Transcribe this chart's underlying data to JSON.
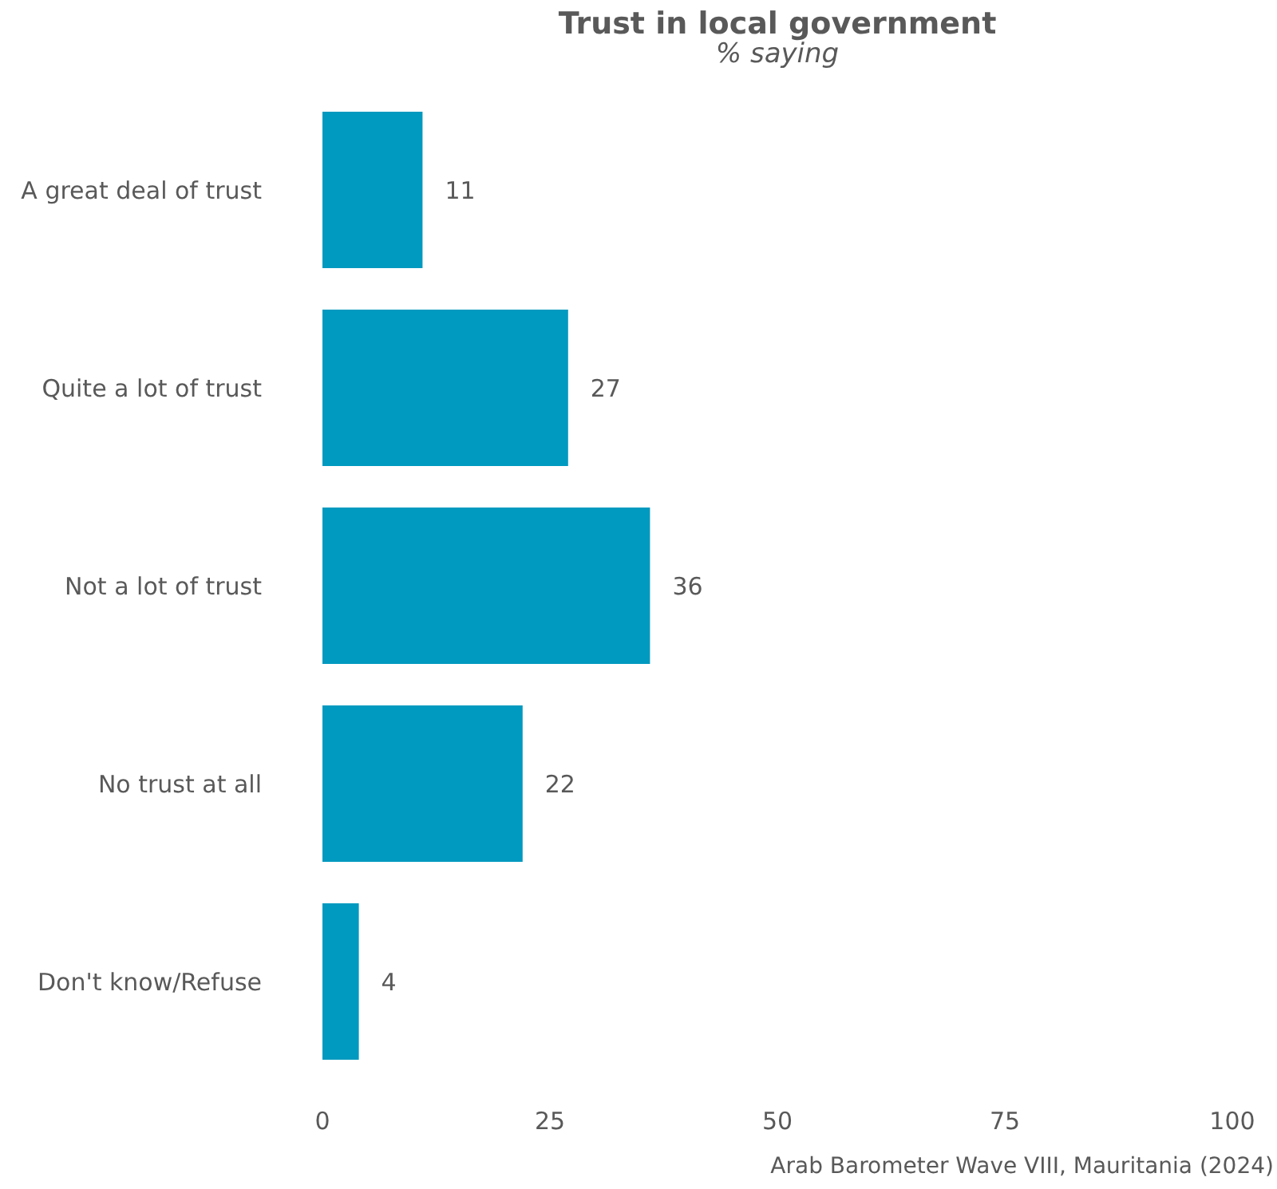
{
  "chart_data": {
    "type": "bar",
    "orientation": "horizontal",
    "title": "Trust in local government",
    "subtitle": "% saying",
    "categories": [
      "A great deal of trust",
      "Quite a lot of trust",
      "Not a lot of trust",
      "No trust at all",
      "Don't know/Refuse"
    ],
    "values": [
      11,
      27,
      36,
      22,
      4
    ],
    "color": "#0099bf",
    "xlim": [
      0,
      100
    ],
    "xticks": [
      0,
      25,
      50,
      75,
      100
    ],
    "data_labels": true,
    "grid": false,
    "annotations": [
      "Arab Barometer Wave VIII, Mauritania (2024)"
    ]
  }
}
